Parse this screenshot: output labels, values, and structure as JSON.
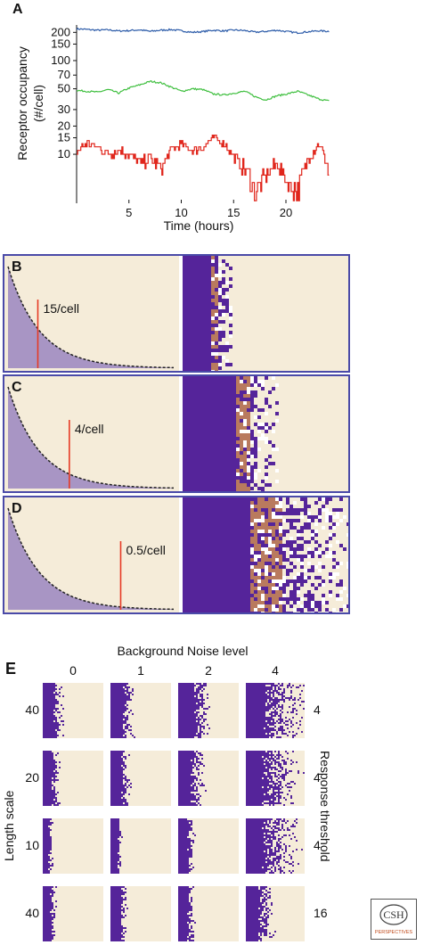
{
  "colors": {
    "series_high": "#2a5aa8",
    "series_mid": "#3fbf3f",
    "series_low": "#e0261c",
    "background": "#f5ecd9",
    "bound": "#55249a",
    "transition": "#b97a5e",
    "threshold_line": "#e63a25",
    "curve_fill": "#9a86c0",
    "panel_border": "#4a4aa8"
  },
  "panel_a": {
    "label": "A",
    "chart_data": {
      "type": "line",
      "xlabel": "Time (hours)",
      "ylabel": "Receptor occupancy (#/cell)",
      "ylabel_line1": "Receptor occupancy",
      "ylabel_line2": "(#/cell)",
      "xlim": [
        0,
        24
      ],
      "xticks": [
        5,
        10,
        15,
        20
      ],
      "xtick_labels": [
        "5",
        "10",
        "15",
        "20"
      ],
      "yscale": "log",
      "ylim": [
        3,
        240
      ],
      "yticks": [
        10,
        15,
        20,
        30,
        50,
        70,
        100,
        150,
        200
      ],
      "ytick_labels": [
        "10",
        "15",
        "20",
        "30",
        "50",
        "70",
        "100",
        "150",
        "200"
      ],
      "series": [
        {
          "mean": 210,
          "values": [
            218,
            215,
            211,
            213,
            207,
            209,
            213,
            205,
            211,
            214,
            208,
            200,
            204,
            211,
            207,
            212,
            209,
            201,
            205,
            211,
            204,
            198,
            203,
            208,
            205
          ]
        },
        {
          "mean": 48,
          "values": [
            48,
            47,
            46,
            49,
            45,
            51,
            55,
            60,
            58,
            52,
            47,
            50,
            49,
            44,
            43,
            45,
            47,
            41,
            38,
            42,
            44,
            47,
            43,
            39,
            37
          ]
        },
        {
          "mean": 10,
          "values": [
            11,
            13,
            12,
            10,
            11,
            10,
            8,
            9,
            7,
            11,
            13,
            11,
            12,
            15,
            13,
            9,
            7,
            4,
            6,
            8,
            5,
            4,
            9,
            13,
            6
          ]
        }
      ]
    }
  },
  "panels_bcd": [
    {
      "label": "B",
      "threshold_text": "15/cell",
      "threshold_fraction": 0.18,
      "bound_edge": 0.16,
      "transition_width": 0.04,
      "scatter_width": 0.08
    },
    {
      "label": "C",
      "threshold_text": "4/cell",
      "threshold_fraction": 0.37,
      "bound_edge": 0.32,
      "transition_width": 0.09,
      "scatter_width": 0.18
    },
    {
      "label": "D",
      "threshold_text": "0.5/cell",
      "threshold_fraction": 0.68,
      "bound_edge": 0.4,
      "transition_width": 0.2,
      "scatter_width": 0.45
    }
  ],
  "panel_e": {
    "label": "E",
    "title": "Background Noise level",
    "columns": [
      "0",
      "1",
      "2",
      "4"
    ],
    "row_axis_label": "Length scale",
    "right_axis_label": "Response threshold",
    "rows": [
      {
        "length_scale": "40",
        "threshold": "4"
      },
      {
        "length_scale": "20",
        "threshold": "4"
      },
      {
        "length_scale": "10",
        "threshold": "4"
      },
      {
        "length_scale": "40",
        "threshold": "16"
      }
    ],
    "grid_params": [
      [
        {
          "edge": 0.18,
          "spread": 0.18
        },
        {
          "edge": 0.22,
          "spread": 0.22
        },
        {
          "edge": 0.26,
          "spread": 0.3
        },
        {
          "edge": 0.3,
          "spread": 0.85
        }
      ],
      [
        {
          "edge": 0.14,
          "spread": 0.14
        },
        {
          "edge": 0.17,
          "spread": 0.18
        },
        {
          "edge": 0.2,
          "spread": 0.25
        },
        {
          "edge": 0.28,
          "spread": 0.8
        }
      ],
      [
        {
          "edge": 0.1,
          "spread": 0.08
        },
        {
          "edge": 0.12,
          "spread": 0.1
        },
        {
          "edge": 0.14,
          "spread": 0.14
        },
        {
          "edge": 0.26,
          "spread": 0.75
        }
      ],
      [
        {
          "edge": 0.12,
          "spread": 0.12
        },
        {
          "edge": 0.14,
          "spread": 0.14
        },
        {
          "edge": 0.16,
          "spread": 0.16
        },
        {
          "edge": 0.22,
          "spread": 0.3
        }
      ]
    ]
  },
  "logo": {
    "text": "CSH",
    "subtext": "PERSPECTIVES"
  }
}
